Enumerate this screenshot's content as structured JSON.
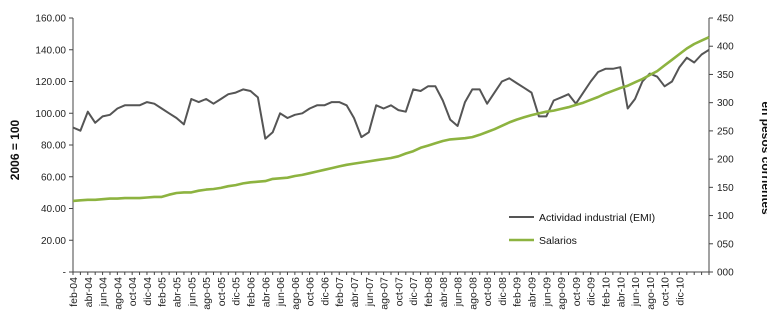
{
  "chart_data": {
    "type": "line",
    "ylabel": "2006 = 100",
    "y2label": "en pesos corrientes",
    "ylim": [
      0,
      160
    ],
    "y2lim": [
      0,
      450
    ],
    "yticks": [
      "-",
      "20.00",
      "40.00",
      "60.00",
      "80.00",
      "100.00",
      "120.00",
      "140.00",
      "160.00"
    ],
    "y2ticks": [
      "000",
      "050",
      "100",
      "150",
      "200",
      "250",
      "300",
      "350",
      "400",
      "450"
    ],
    "xtick_labels": [
      "feb-04",
      "abr-04",
      "jun-04",
      "ago-04",
      "oct-04",
      "dic-04",
      "feb-05",
      "abr-05",
      "jun-05",
      "ago-05",
      "oct-05",
      "dic-05",
      "feb-06",
      "abr-06",
      "jun-06",
      "ago-06",
      "oct-06",
      "dic-06",
      "feb-07",
      "abr-07",
      "jun-07",
      "ago-07",
      "oct-07",
      "dic-07",
      "feb-08",
      "abr-08",
      "jun-08",
      "ago-08",
      "oct-08",
      "dic-08",
      "feb-09",
      "abr-09",
      "jun-09",
      "ago-09",
      "oct-09",
      "dic-09",
      "feb-10",
      "abr-10",
      "jun-10",
      "ago-10",
      "oct-10",
      "dic-10"
    ],
    "legend_position": "bottom-right",
    "grid": false,
    "series": [
      {
        "name": "Actividad industrial (EMI)",
        "axis": "left",
        "color": "#555555",
        "values": [
          91,
          89,
          101,
          94,
          98,
          99,
          103,
          105,
          105,
          105,
          107,
          106,
          103,
          100,
          97,
          93,
          109,
          107,
          109,
          106,
          109,
          112,
          113,
          115,
          114,
          110,
          84,
          88,
          100,
          97,
          99,
          100,
          103,
          105,
          105,
          107,
          107,
          105,
          97,
          85,
          88,
          105,
          103,
          105,
          102,
          101,
          115,
          114,
          117,
          117,
          108,
          96,
          92,
          107,
          115,
          115,
          106,
          113,
          120,
          122,
          119,
          116,
          113,
          98,
          98,
          108,
          110,
          112,
          106,
          113,
          120,
          126,
          128,
          128,
          129,
          103,
          109,
          120,
          125,
          123,
          117,
          120,
          129,
          135,
          132,
          137,
          140
        ]
      },
      {
        "name": "Salarios",
        "axis": "right",
        "color": "#8db340",
        "values": [
          126,
          127,
          128,
          128,
          129,
          130,
          130,
          131,
          131,
          131,
          132,
          133,
          133,
          137,
          140,
          141,
          141,
          144,
          146,
          147,
          149,
          152,
          154,
          157,
          159,
          160,
          161,
          165,
          166,
          167,
          170,
          172,
          175,
          178,
          181,
          184,
          187,
          190,
          192,
          194,
          196,
          198,
          200,
          202,
          205,
          210,
          214,
          220,
          224,
          228,
          232,
          235,
          236,
          237,
          239,
          243,
          248,
          253,
          259,
          265,
          270,
          274,
          278,
          281,
          284,
          286,
          289,
          292,
          296,
          300,
          305,
          310,
          316,
          321,
          326,
          330,
          336,
          342,
          349,
          356,
          366,
          376,
          386,
          396,
          404,
          410,
          416
        ]
      }
    ]
  }
}
